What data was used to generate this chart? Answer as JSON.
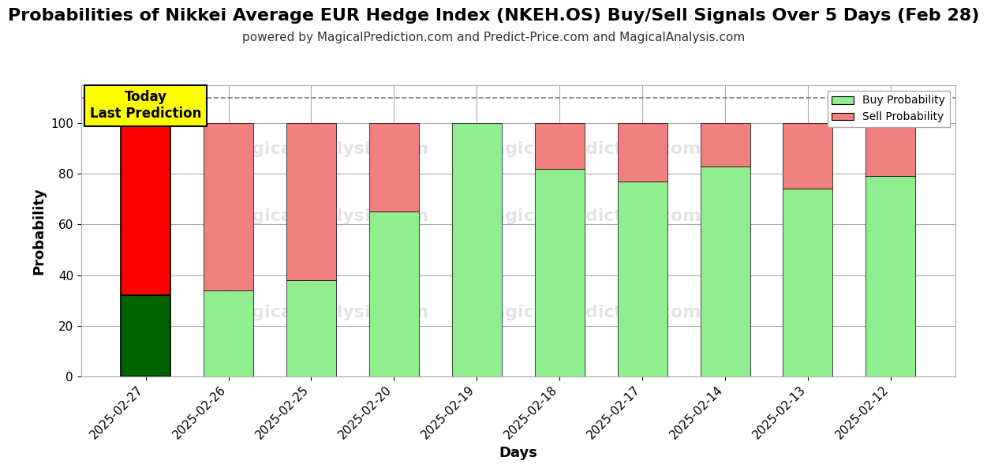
{
  "title": "Probabilities of Nikkei Average EUR Hedge Index (NKEH.OS) Buy/Sell Signals Over 5 Days (Feb 28)",
  "subtitle": "powered by MagicalPrediction.com and Predict-Price.com and MagicalAnalysis.com",
  "xlabel": "Days",
  "ylabel": "Probability",
  "categories": [
    "2025-02-27",
    "2025-02-26",
    "2025-02-25",
    "2025-02-20",
    "2025-02-19",
    "2025-02-18",
    "2025-02-17",
    "2025-02-14",
    "2025-02-13",
    "2025-02-12"
  ],
  "buy_values": [
    32,
    34,
    38,
    65,
    100,
    82,
    77,
    83,
    74,
    79
  ],
  "sell_values": [
    68,
    66,
    62,
    35,
    0,
    18,
    23,
    17,
    26,
    21
  ],
  "today_buy_color": "#006400",
  "today_sell_color": "#FF0000",
  "buy_color": "#90EE90",
  "sell_color": "#F08080",
  "today_annotation": "Today\nLast Prediction",
  "today_annotation_bg": "#FFFF00",
  "dashed_line_y": 110,
  "ylim": [
    0,
    115
  ],
  "yticks": [
    0,
    20,
    40,
    60,
    80,
    100
  ],
  "legend_buy_label": "Buy Probability",
  "legend_sell_label": "Sell Probability",
  "title_fontsize": 16,
  "subtitle_fontsize": 11,
  "axis_label_fontsize": 13,
  "tick_fontsize": 11,
  "bar_edge_color": "#000000",
  "bar_edge_linewidth": 0.5,
  "background_color": "#ffffff",
  "grid_color": "#aaaaaa"
}
